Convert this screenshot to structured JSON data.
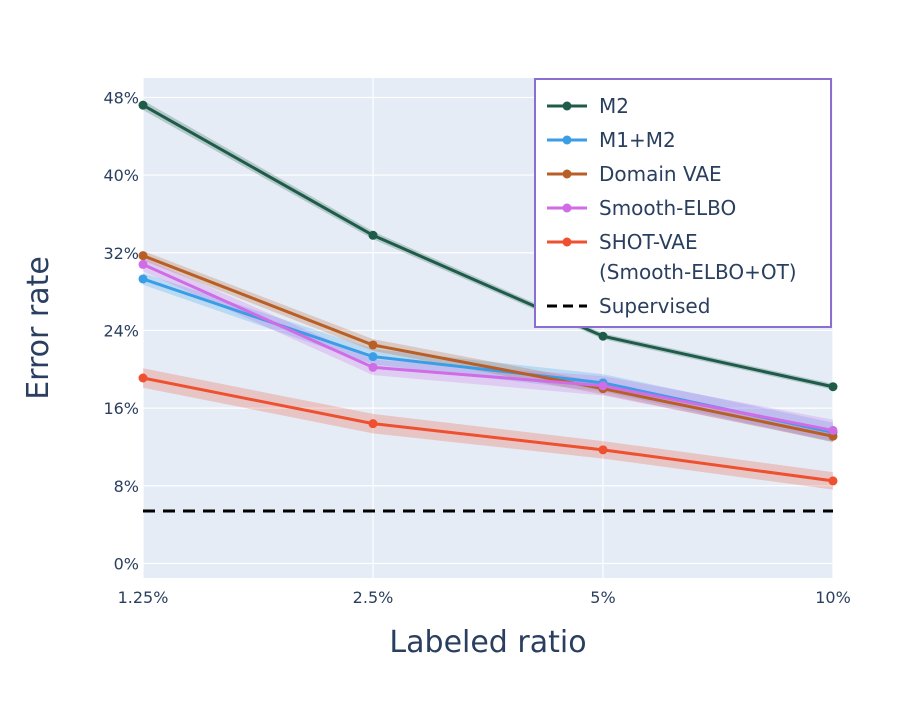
{
  "chart_data": {
    "type": "line",
    "xlabel": "Labeled ratio",
    "ylabel": "Error rate",
    "x": [
      1.25,
      2.5,
      5,
      10
    ],
    "x_tick_labels": [
      "1.25%",
      "2.5%",
      "5%",
      "10%"
    ],
    "y_ticks": [
      0,
      8,
      16,
      24,
      32,
      40,
      48
    ],
    "y_tick_labels": [
      "0%",
      "8%",
      "16%",
      "24%",
      "32%",
      "40%",
      "48%"
    ],
    "xlim": [
      1.25,
      10
    ],
    "ylim": [
      -1.5,
      50
    ],
    "grid": true,
    "background_color": "#e5ecf6",
    "legend_position": "top-right",
    "legend_border_color": "#8a6fd1",
    "series": [
      {
        "name": "M2",
        "color": "#1e5b49",
        "values": [
          47.2,
          33.8,
          23.4,
          18.2
        ],
        "band": [
          0.5,
          0.4,
          0.3,
          0.3
        ]
      },
      {
        "name": "M1+M2",
        "color": "#3a9ee6",
        "values": [
          29.3,
          21.3,
          18.6,
          13.5
        ],
        "band": [
          0.6,
          0.8,
          0.9,
          1.0
        ]
      },
      {
        "name": "Domain VAE",
        "color": "#b85f28",
        "values": [
          31.7,
          22.5,
          18.0,
          13.1
        ],
        "band": [
          0.5,
          0.6,
          0.6,
          0.6
        ]
      },
      {
        "name": "Smooth-ELBO",
        "color": "#cf6ce6",
        "values": [
          30.8,
          20.2,
          18.3,
          13.7
        ],
        "band": [
          0.7,
          0.8,
          1.0,
          1.1
        ]
      },
      {
        "name": "SHOT-VAE\n(Smooth-ELBO+OT)",
        "color": "#ee5030",
        "values": [
          19.1,
          14.4,
          11.7,
          8.5
        ],
        "band": [
          1.0,
          1.0,
          0.9,
          0.9
        ]
      }
    ],
    "reference_line": {
      "name": "Supervised",
      "value": 5.4,
      "color": "#000000",
      "style": "dashed"
    }
  }
}
